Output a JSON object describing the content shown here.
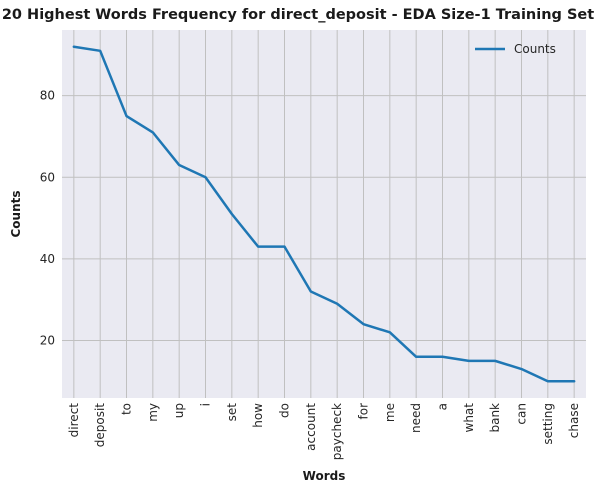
{
  "chart_data": {
    "type": "line",
    "title": "20 Highest Words Frequency for direct_deposit - EDA Size-1 Training Set",
    "xlabel": "Words",
    "ylabel": "Counts",
    "categories": [
      "direct",
      "deposit",
      "to",
      "my",
      "up",
      "i",
      "set",
      "how",
      "do",
      "account",
      "paycheck",
      "for",
      "me",
      "need",
      "a",
      "what",
      "bank",
      "can",
      "setting",
      "chase"
    ],
    "series": [
      {
        "name": "Counts",
        "values": [
          92,
          91,
          75,
          71,
          63,
          60,
          51,
          43,
          43,
          32,
          29,
          24,
          22,
          16,
          16,
          15,
          15,
          13,
          10,
          10
        ],
        "color": "#1f77b4"
      }
    ],
    "ylim": [
      5.9,
      96.1
    ],
    "yticks": [
      20,
      40,
      60,
      80
    ],
    "grid": true,
    "legend_position": "top-right",
    "colors": {
      "plot_background": "#eaeaf2",
      "grid": "#c0c0c0",
      "line": "#1f77b4"
    }
  }
}
